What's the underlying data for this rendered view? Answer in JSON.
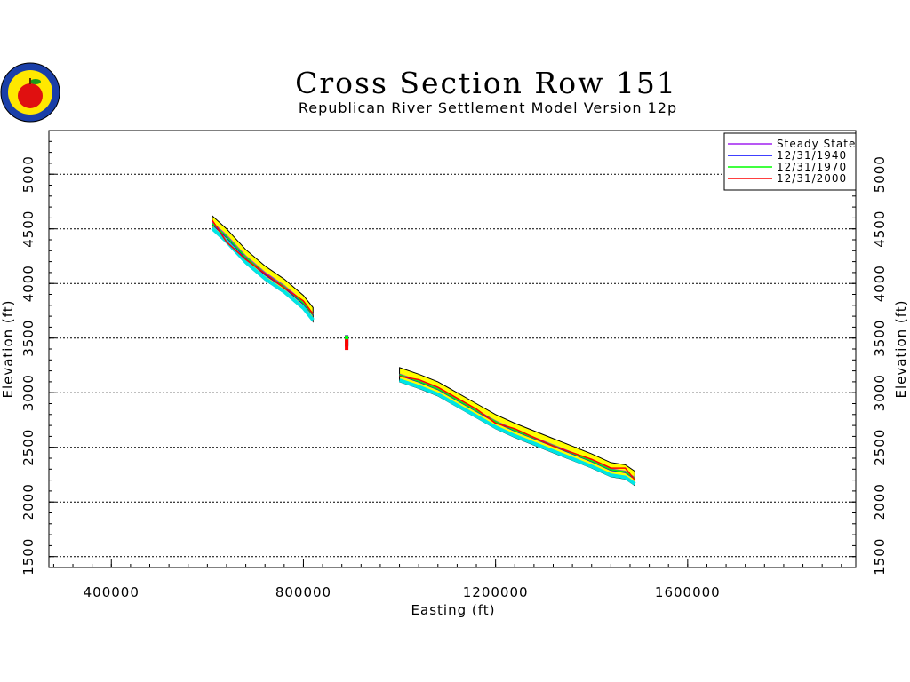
{
  "chart_data": {
    "type": "line",
    "title": "Cross Section Row 151",
    "subtitle": "Republican River Settlement Model Version 12p",
    "xlabel": "Easting (ft)",
    "ylabel": "Elevation (ft)",
    "xlim": [
      270000,
      1950000
    ],
    "ylim": [
      1400,
      5400
    ],
    "x_ticks": [
      400000,
      800000,
      1200000,
      1600000
    ],
    "y_ticks": [
      1500,
      2000,
      2500,
      3000,
      3500,
      4000,
      4500,
      5000
    ],
    "grid": "horizontal dashed at y ticks",
    "legend_position": "top-right",
    "series": [
      {
        "name": "Steady State",
        "color": "#a020f0",
        "x": [
          610000,
          640000,
          680000,
          720000,
          760000,
          800000,
          820000,
          890000,
          1000000,
          1040000,
          1080000,
          1120000,
          1160000,
          1200000,
          1240000,
          1280000,
          1320000,
          1360000,
          1400000,
          1440000,
          1470000,
          1490000
        ],
        "y": [
          4560,
          4440,
          4250,
          4100,
          3980,
          3830,
          3720,
          3480,
          3170,
          3110,
          3040,
          2940,
          2840,
          2740,
          2660,
          2590,
          2520,
          2450,
          2380,
          2300,
          2280,
          2220
        ]
      },
      {
        "name": "12/31/1940",
        "color": "#0000ff",
        "x": [
          610000,
          640000,
          680000,
          720000,
          760000,
          800000,
          820000,
          890000,
          1000000,
          1040000,
          1080000,
          1120000,
          1160000,
          1200000,
          1240000,
          1280000,
          1320000,
          1360000,
          1400000,
          1440000,
          1470000,
          1490000
        ],
        "y": [
          4540,
          4420,
          4230,
          4080,
          3960,
          3810,
          3710,
          3470,
          3160,
          3100,
          3030,
          2930,
          2830,
          2730,
          2650,
          2580,
          2510,
          2440,
          2370,
          2290,
          2270,
          2210
        ]
      },
      {
        "name": "12/31/1970",
        "color": "#00ff00",
        "x": [
          610000,
          640000,
          680000,
          720000,
          760000,
          800000,
          820000,
          890000,
          1000000,
          1040000,
          1080000,
          1120000,
          1160000,
          1200000,
          1240000,
          1280000,
          1320000,
          1360000,
          1400000,
          1440000,
          1470000,
          1490000
        ],
        "y": [
          4550,
          4430,
          4240,
          4090,
          3970,
          3820,
          3715,
          3475,
          3165,
          3105,
          3035,
          2935,
          2835,
          2735,
          2655,
          2585,
          2515,
          2445,
          2375,
          2295,
          2275,
          2215
        ]
      },
      {
        "name": "12/31/2000",
        "color": "#ff0000",
        "x": [
          610000,
          640000,
          680000,
          720000,
          760000,
          800000,
          820000,
          890000,
          1000000,
          1040000,
          1080000,
          1120000,
          1160000,
          1200000,
          1240000,
          1280000,
          1320000,
          1360000,
          1400000,
          1440000,
          1470000,
          1490000
        ],
        "y": [
          4580,
          4380,
          4220,
          4090,
          3960,
          3840,
          3720,
          3440,
          3150,
          3120,
          3050,
          2950,
          2850,
          2720,
          2670,
          2590,
          2510,
          2450,
          2390,
          2310,
          2310,
          2200
        ]
      }
    ]
  }
}
